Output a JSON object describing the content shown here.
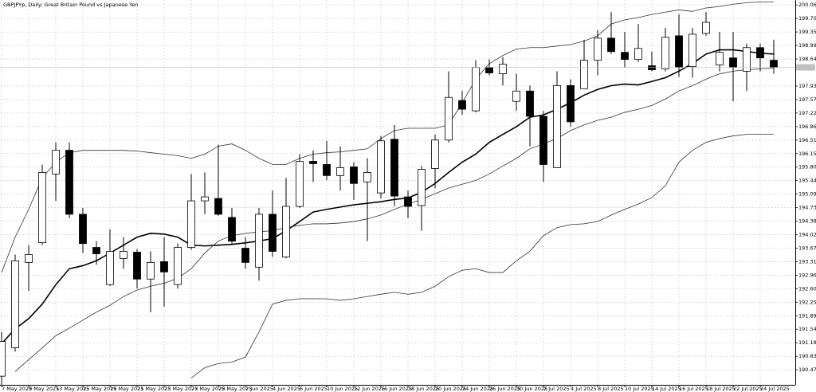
{
  "chart_data": {
    "type": "candlestick",
    "title": "GBPJPYp, Daily:  Great Britain Pound vs Japanese Yen",
    "categories": [
      "7 May 2025",
      null,
      "9 May 2025",
      null,
      "13 May 2025",
      null,
      "15 May 2025",
      null,
      "19 May 2025",
      null,
      "21 May 2025",
      null,
      "23 May 2025",
      null,
      "27 May 2025",
      null,
      "29 May 2025",
      null,
      "2 Jun 2025",
      null,
      "4 Jun 2025",
      null,
      "6 Jun 2025",
      null,
      "10 Jun 2025",
      null,
      "12 Jun 2025",
      null,
      "16 Jun 2025",
      null,
      "18 Jun 2025",
      null,
      "20 Jun 2025",
      null,
      "24 Jun 2025",
      null,
      "26 Jun 2025",
      null,
      "30 Jun 2025",
      null,
      "2 Jul 2025",
      null,
      "4 Jul 2025",
      null,
      "8 Jul 2025",
      null,
      "10 Jul 2025",
      null,
      "14 Jul 2025",
      null,
      "16 Jul 2025",
      null,
      "18 Jul 2025",
      null,
      "22 Jul 2025",
      null,
      "24 Jul 2025",
      null
    ],
    "open": [
      190.307,
      191.054,
      193.295,
      193.814,
      195.619,
      196.242,
      194.561,
      193.69,
      192.714,
      193.399,
      193.565,
      192.859,
      193.316,
      192.714,
      193.69,
      194.914,
      194.976,
      194.478,
      193.669,
      193.171,
      194.561,
      193.44,
      194.768,
      195.951,
      195.868,
      195.578,
      195.806,
      195.412,
      195.122,
      196.532,
      195.018,
      194.79,
      195.764,
      196.511,
      197.549,
      197.279,
      198.42,
      198.254,
      197.528,
      197.798,
      197.134,
      195.785,
      197.943,
      197.86,
      198.607,
      199.188,
      198.815,
      198.628,
      198.462,
      198.379,
      199.25,
      198.441,
      199.313,
      198.483,
      198.669,
      198.317,
      198.939,
      198.607
    ],
    "high": [
      191.469,
      193.503,
      193.752,
      195.868,
      196.449,
      196.449,
      194.727,
      193.855,
      194.166,
      193.959,
      193.648,
      193.586,
      193.959,
      193.793,
      195.619,
      195.66,
      196.387,
      194.727,
      193.959,
      194.727,
      195.184,
      195.515,
      196.138,
      196.242,
      196.49,
      196.345,
      195.93,
      196.034,
      196.615,
      196.906,
      195.184,
      195.827,
      196.657,
      198.317,
      197.798,
      198.607,
      198.628,
      198.69,
      198.254,
      197.943,
      197.279,
      198.317,
      198.109,
      199.147,
      199.395,
      199.873,
      199.354,
      199.562,
      198.835,
      199.458,
      199.81,
      199.458,
      199.873,
      199.354,
      199.354,
      199.043,
      199.043,
      199.147
    ],
    "low": [
      190.016,
      190.95,
      192.548,
      193.752,
      194.914,
      194.458,
      193.544,
      193.233,
      192.673,
      193.129,
      192.61,
      191.988,
      192.133,
      192.61,
      193.627,
      194.561,
      194.52,
      193.752,
      193.129,
      192.818,
      193.44,
      193.399,
      194.727,
      195.412,
      195.453,
      195.184,
      194.935,
      193.855,
      194.976,
      194.768,
      194.458,
      194.125,
      195.246,
      196.449,
      197.176,
      197.238,
      198.213,
      197.943,
      197.279,
      196.345,
      195.412,
      195.785,
      196.864,
      197.86,
      198.213,
      198.773,
      198.42,
      198.566,
      198.317,
      198.317,
      198.171,
      198.151,
      199.25,
      198.317,
      197.528,
      197.798,
      198.317,
      198.254
    ],
    "close": [
      191.22,
      193.337,
      193.503,
      195.66,
      196.242,
      194.561,
      193.793,
      193.523,
      193.586,
      193.586,
      192.859,
      193.295,
      193.046,
      193.69,
      194.914,
      195.018,
      194.561,
      193.855,
      193.295,
      194.561,
      193.586,
      194.768,
      195.951,
      195.889,
      195.578,
      195.785,
      195.37,
      195.66,
      196.49,
      195.039,
      194.768,
      195.743,
      196.511,
      197.632,
      197.32,
      198.42,
      198.275,
      198.503,
      197.798,
      197.134,
      195.868,
      197.943,
      196.989,
      198.607,
      199.188,
      198.835,
      198.628,
      198.918,
      198.358,
      199.209,
      198.42,
      199.292,
      199.603,
      198.815,
      198.42,
      198.939,
      198.669,
      198.42
    ],
    "up_color": "#ffffff",
    "down_color": "#000000",
    "lines": [
      {
        "color": "#000000",
        "values": [
          191.16,
          191.55,
          191.82,
          192.2,
          192.71,
          193.13,
          193.21,
          193.34,
          193.54,
          193.75,
          193.96,
          194.06,
          194.04,
          193.96,
          193.75,
          193.73,
          193.75,
          193.77,
          193.81,
          193.86,
          193.92,
          194.13,
          194.37,
          194.62,
          194.69,
          194.75,
          194.81,
          194.85,
          194.89,
          194.95,
          194.99,
          195.14,
          195.37,
          195.66,
          195.93,
          196.14,
          196.45,
          196.66,
          196.86,
          197.11,
          197.17,
          197.32,
          197.49,
          197.69,
          197.84,
          197.94,
          197.98,
          197.96,
          198.05,
          198.15,
          198.32,
          198.52,
          198.77,
          198.88,
          198.88,
          198.84,
          198.79,
          198.77
        ]
      },
      {
        "color": "#333333",
        "values": [
          193.03,
          193.96,
          194.69,
          195.52,
          195.93,
          196.18,
          196.24,
          196.24,
          196.24,
          196.24,
          196.22,
          196.18,
          196.14,
          196.1,
          196.03,
          196.14,
          196.35,
          196.41,
          196.24,
          196.03,
          195.87,
          195.87,
          196.03,
          196.14,
          196.18,
          196.2,
          196.24,
          196.28,
          196.55,
          196.76,
          196.82,
          196.82,
          196.82,
          196.91,
          197.49,
          198.11,
          198.52,
          198.73,
          198.9,
          198.94,
          198.94,
          198.98,
          199.02,
          199.11,
          199.25,
          199.56,
          199.67,
          199.73,
          199.81,
          199.87,
          199.93,
          199.89,
          199.98,
          200.02,
          200.08,
          200.12,
          200.14,
          200.14
        ]
      },
      {
        "color": "#333333",
        "values": [
          null,
          190.43,
          190.74,
          191.05,
          191.37,
          191.57,
          191.78,
          191.99,
          192.17,
          192.4,
          192.57,
          192.67,
          192.75,
          192.88,
          193.13,
          193.54,
          193.86,
          194.0,
          194.06,
          194.1,
          194.13,
          194.21,
          194.27,
          194.31,
          194.31,
          194.33,
          194.37,
          194.44,
          194.54,
          194.69,
          194.83,
          194.95,
          195.1,
          195.25,
          195.35,
          195.45,
          195.62,
          195.83,
          196.03,
          196.28,
          196.41,
          196.55,
          196.76,
          196.91,
          197.03,
          197.11,
          197.24,
          197.32,
          197.42,
          197.59,
          197.8,
          197.94,
          198.11,
          198.25,
          198.32,
          198.36,
          198.38,
          198.4
        ]
      },
      {
        "color": "#333333",
        "values": [
          null,
          null,
          null,
          null,
          null,
          null,
          null,
          null,
          null,
          null,
          null,
          null,
          null,
          null,
          190.26,
          190.53,
          190.64,
          190.68,
          190.81,
          191.47,
          192.2,
          192.3,
          192.34,
          192.34,
          192.34,
          192.3,
          192.34,
          192.4,
          192.46,
          192.51,
          192.46,
          192.51,
          192.67,
          192.92,
          193.09,
          193.13,
          193.03,
          193.03,
          193.34,
          193.59,
          194.0,
          194.21,
          194.29,
          194.31,
          194.37,
          194.54,
          194.69,
          194.83,
          195.0,
          195.31,
          195.93,
          196.24,
          196.45,
          196.55,
          196.62,
          196.66,
          196.66,
          196.66
        ]
      }
    ],
    "ylim": [
      190.08,
      200.19
    ],
    "yticks": [
      {
        "value": 200.06,
        "label": "200.060"
      },
      199.705,
      199.35,
      198.995,
      {
        "value": 198.64,
        "label": "198.640"
      },
      {
        "value": 197.93,
        "label": "197.930"
      },
      197.575,
      197.22,
      196.865,
      {
        "value": 196.51,
        "label": "196.510"
      },
      196.155,
      {
        "value": 195.8,
        "label": "195.800"
      },
      195.445,
      {
        "value": 195.09,
        "label": "195.090"
      },
      194.735,
      {
        "value": 194.38,
        "label": "194.380"
      },
      194.025,
      {
        "value": 193.67,
        "label": "193.670"
      },
      193.315,
      {
        "value": 192.96,
        "label": "192.960"
      },
      192.605,
      {
        "value": 192.25,
        "label": "192.250"
      },
      191.895,
      {
        "value": 191.54,
        "label": "191.540"
      },
      191.185,
      {
        "value": 190.83,
        "label": "190.830"
      },
      190.475
    ],
    "grid": true
  }
}
